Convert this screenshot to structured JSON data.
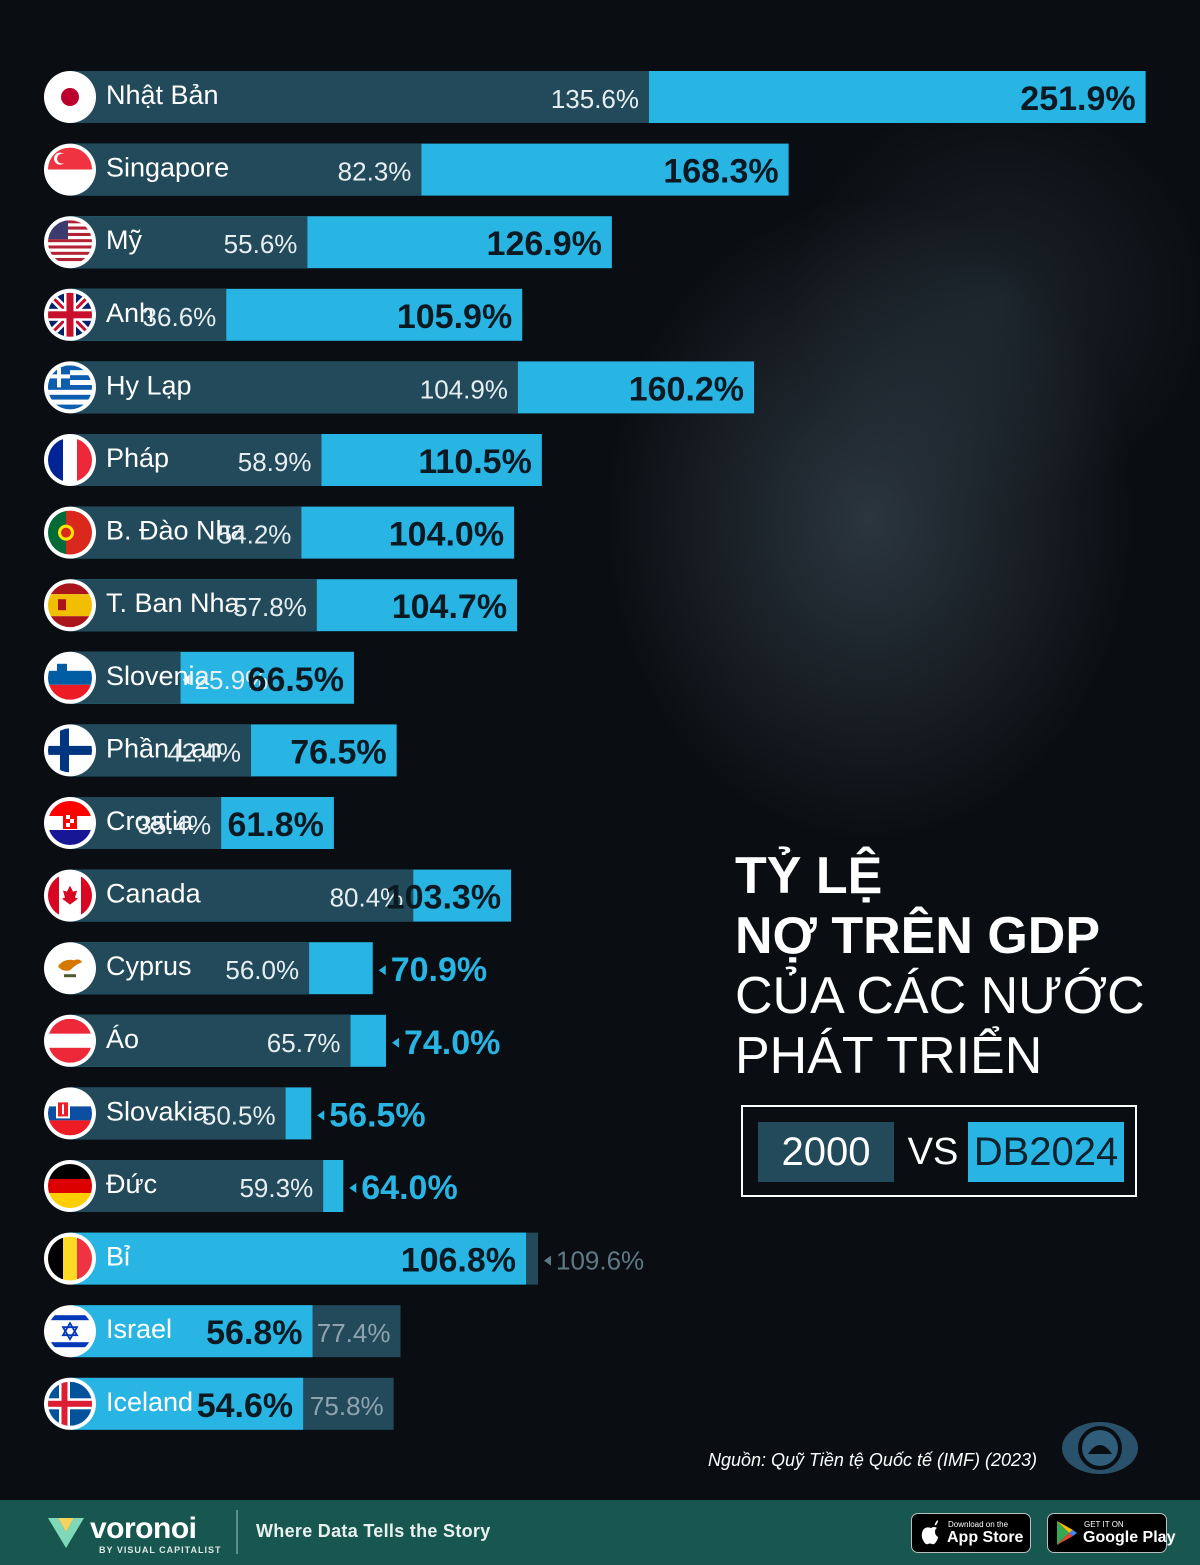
{
  "title": {
    "line1": "TỶ LỆ",
    "line2": "NỢ TRÊN GDP",
    "line3": "CỦA CÁC NƯỚC",
    "line4": "PHÁT TRIỂN"
  },
  "legend": {
    "year_2000": "2000",
    "vs": "VS",
    "year_2024": "DB2024"
  },
  "colors": {
    "bar_2000": "#224a5a",
    "bar_2024": "#29b5e3",
    "background": "#0a0e12",
    "footer": "#17574f"
  },
  "chart_data": {
    "type": "bar",
    "orientation": "horizontal",
    "title": "TỶ LỆ NỢ TRÊN GDP CỦA CÁC NƯỚC PHÁT TRIỂN",
    "unit": "%",
    "series": [
      {
        "name": "2000"
      },
      {
        "name": "DB2024"
      }
    ],
    "rows": [
      {
        "country": "Nhật Bản",
        "flag": "japan-flag",
        "v2000": 135.6,
        "v2024": 251.9,
        "l2000": "135.6%",
        "l2024": "251.9%"
      },
      {
        "country": "Singapore",
        "flag": "singapore-flag",
        "v2000": 82.3,
        "v2024": 168.3,
        "l2000": "82.3%",
        "l2024": "168.3%"
      },
      {
        "country": "Mỹ",
        "flag": "usa-flag",
        "v2000": 55.6,
        "v2024": 126.9,
        "l2000": "55.6%",
        "l2024": "126.9%"
      },
      {
        "country": "Anh",
        "flag": "uk-flag",
        "v2000": 36.6,
        "v2024": 105.9,
        "l2000": "36.6%",
        "l2024": "105.9%"
      },
      {
        "country": "Hy Lạp",
        "flag": "greece-flag",
        "v2000": 104.9,
        "v2024": 160.2,
        "l2000": "104.9%",
        "l2024": "160.2%"
      },
      {
        "country": "Pháp",
        "flag": "france-flag",
        "v2000": 58.9,
        "v2024": 110.5,
        "l2000": "58.9%",
        "l2024": "110.5%"
      },
      {
        "country": "B. Đào Nha",
        "flag": "portugal-flag",
        "v2000": 54.2,
        "v2024": 104.0,
        "l2000": "54.2%",
        "l2024": "104.0%"
      },
      {
        "country": "T. Ban Nha",
        "flag": "spain-flag",
        "v2000": 57.8,
        "v2024": 104.7,
        "l2000": "57.8%",
        "l2024": "104.7%"
      },
      {
        "country": "Slovenia",
        "flag": "slovenia-flag",
        "v2000": 25.9,
        "v2024": 66.5,
        "l2000": "25.9%",
        "l2024": "66.5%"
      },
      {
        "country": "Phần Lan",
        "flag": "finland-flag",
        "v2000": 42.4,
        "v2024": 76.5,
        "l2000": "42.4%",
        "l2024": "76.5%"
      },
      {
        "country": "Croatia",
        "flag": "croatia-flag",
        "v2000": 35.4,
        "v2024": 61.8,
        "l2000": "35.4%",
        "l2024": "61.8%"
      },
      {
        "country": "Canada",
        "flag": "canada-flag",
        "v2000": 80.4,
        "v2024": 103.3,
        "l2000": "80.4%",
        "l2024": "103.3%"
      },
      {
        "country": "Cyprus",
        "flag": "cyprus-flag",
        "v2000": 56.0,
        "v2024": 70.9,
        "l2000": "56.0%",
        "l2024": "70.9%"
      },
      {
        "country": "Áo",
        "flag": "austria-flag",
        "v2000": 65.7,
        "v2024": 74.0,
        "l2000": "65.7%",
        "l2024": "74.0%"
      },
      {
        "country": "Slovakia",
        "flag": "slovakia-flag",
        "v2000": 50.5,
        "v2024": 56.5,
        "l2000": "50.5%",
        "l2024": "56.5%"
      },
      {
        "country": "Đức",
        "flag": "germany-flag",
        "v2000": 59.3,
        "v2024": 64.0,
        "l2000": "59.3%",
        "l2024": "64.0%"
      },
      {
        "country": "Bỉ",
        "flag": "belgium-flag",
        "v2000": 109.6,
        "v2024": 106.8,
        "l2000": "109.6%",
        "l2024": "106.8%"
      },
      {
        "country": "Israel",
        "flag": "israel-flag",
        "v2000": 77.4,
        "v2024": 56.8,
        "l2000": "77.4%",
        "l2024": "56.8%"
      },
      {
        "country": "Iceland",
        "flag": "iceland-flag",
        "v2000": 75.8,
        "v2024": 54.6,
        "l2000": "75.8%",
        "l2024": "54.6%"
      }
    ]
  },
  "source": "Nguồn: Quỹ Tiền tệ Quốc tế (IMF) (2023)",
  "footer": {
    "brand": "voronoi",
    "brand_sub": "BY VISUAL CAPITALIST",
    "tagline": "Where Data Tells the Story",
    "app_store_small": "Download on the",
    "app_store_big": "App Store",
    "google_small": "GET IT ON",
    "google_big": "Google Play"
  }
}
